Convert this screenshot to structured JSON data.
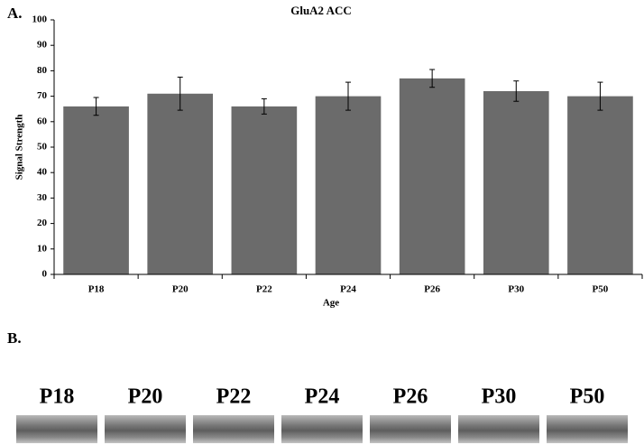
{
  "chart_data": {
    "type": "bar",
    "panel_label": "A.",
    "title": "GluA2 ACC",
    "x_label": "Age",
    "y_label": "Signal Strength",
    "categories": [
      "P18",
      "P20",
      "P22",
      "P24",
      "P26",
      "P30",
      "P50"
    ],
    "values": [
      66,
      71,
      66,
      70,
      77,
      72,
      70
    ],
    "errors": [
      3.5,
      6.5,
      3,
      5.5,
      3.5,
      4,
      5.5
    ],
    "color": "#6b6b6b",
    "ylim": [
      0,
      100
    ],
    "yticks": [
      0,
      10,
      20,
      30,
      40,
      50,
      60,
      70,
      80,
      90,
      100
    ]
  },
  "blot": {
    "panel_label": "B.",
    "lanes": [
      "P18",
      "P20",
      "P22",
      "P24",
      "P26",
      "P30",
      "P50"
    ]
  }
}
